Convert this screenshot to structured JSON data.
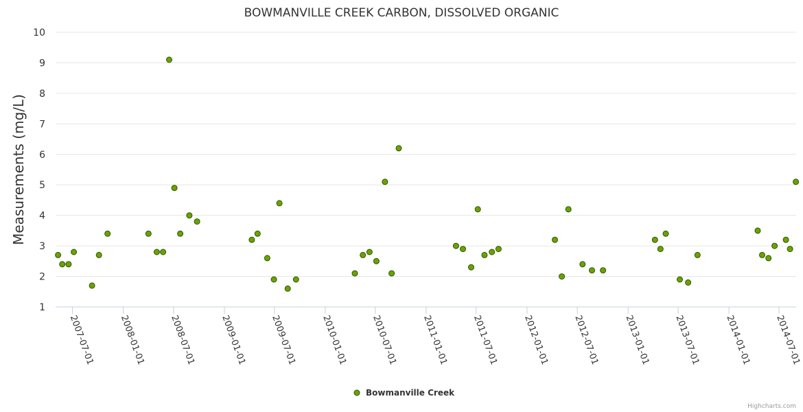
{
  "chart_data": {
    "type": "scatter",
    "title": "BOWMANVILLE CREEK CARBON, DISSOLVED ORGANIC",
    "ylabel": "Measurements (mg/L)",
    "xlabel": "",
    "ylim": [
      1,
      10
    ],
    "yticks": [
      "1",
      "2",
      "3",
      "4",
      "5",
      "6",
      "7",
      "8",
      "9",
      "10"
    ],
    "xlim": [
      "2007-05-01",
      "2014-09-01"
    ],
    "xticks": [
      "2007-07-01",
      "2008-01-01",
      "2008-07-01",
      "2009-01-01",
      "2009-07-01",
      "2010-01-01",
      "2010-07-01",
      "2011-01-01",
      "2011-07-01",
      "2012-01-01",
      "2012-07-01",
      "2013-01-01",
      "2013-07-01",
      "2014-01-01",
      "2014-07-01"
    ],
    "grid": true,
    "legend_position": "bottom-center",
    "series": [
      {
        "name": "Bowmanville Creek",
        "color": "#6aa300",
        "points": [
          [
            "2007-05-10",
            2.7
          ],
          [
            "2007-05-25",
            2.4
          ],
          [
            "2007-06-17",
            2.4
          ],
          [
            "2007-07-06",
            2.8
          ],
          [
            "2007-09-10",
            1.7
          ],
          [
            "2007-10-05",
            2.7
          ],
          [
            "2007-11-05",
            3.4
          ],
          [
            "2008-04-01",
            3.4
          ],
          [
            "2008-05-01",
            2.8
          ],
          [
            "2008-05-24",
            2.8
          ],
          [
            "2008-06-15",
            9.1
          ],
          [
            "2008-07-04",
            4.9
          ],
          [
            "2008-07-25",
            3.4
          ],
          [
            "2008-08-27",
            4.0
          ],
          [
            "2008-09-24",
            3.8
          ],
          [
            "2009-04-10",
            3.2
          ],
          [
            "2009-05-01",
            3.4
          ],
          [
            "2009-06-05",
            2.6
          ],
          [
            "2009-06-29",
            1.9
          ],
          [
            "2009-07-19",
            4.4
          ],
          [
            "2009-08-18",
            1.6
          ],
          [
            "2009-09-17",
            1.9
          ],
          [
            "2010-04-18",
            2.1
          ],
          [
            "2010-05-17",
            2.7
          ],
          [
            "2010-06-10",
            2.8
          ],
          [
            "2010-07-05",
            2.5
          ],
          [
            "2010-08-05",
            5.1
          ],
          [
            "2010-08-29",
            2.1
          ],
          [
            "2010-09-24",
            6.2
          ],
          [
            "2011-04-19",
            3.0
          ],
          [
            "2011-05-14",
            2.9
          ],
          [
            "2011-06-13",
            2.3
          ],
          [
            "2011-07-07",
            4.2
          ],
          [
            "2011-07-31",
            2.7
          ],
          [
            "2011-08-27",
            2.8
          ],
          [
            "2011-09-20",
            2.9
          ],
          [
            "2012-04-11",
            3.2
          ],
          [
            "2012-05-06",
            2.0
          ],
          [
            "2012-05-30",
            4.2
          ],
          [
            "2012-07-20",
            2.4
          ],
          [
            "2012-08-23",
            2.2
          ],
          [
            "2012-10-02",
            2.2
          ],
          [
            "2013-04-08",
            3.2
          ],
          [
            "2013-04-28",
            2.9
          ],
          [
            "2013-05-17",
            3.4
          ],
          [
            "2013-07-07",
            1.9
          ],
          [
            "2013-08-06",
            1.8
          ],
          [
            "2013-09-09",
            2.7
          ],
          [
            "2014-04-15",
            3.5
          ],
          [
            "2014-05-01",
            2.7
          ],
          [
            "2014-05-24",
            2.6
          ],
          [
            "2014-06-15",
            3.0
          ],
          [
            "2014-07-26",
            3.2
          ],
          [
            "2014-08-10",
            2.9
          ],
          [
            "2014-08-31",
            5.1
          ]
        ]
      }
    ]
  },
  "credit": "Highcharts.com"
}
